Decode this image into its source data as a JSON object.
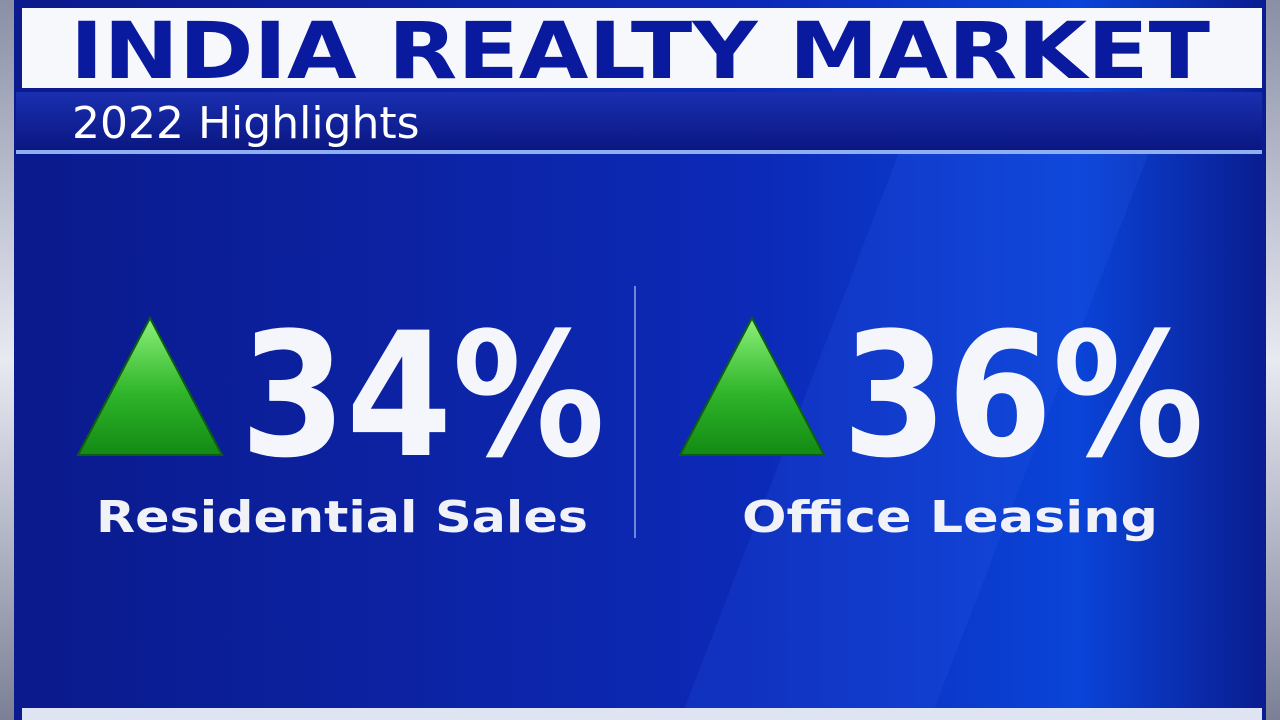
{
  "header": {
    "title": "INDIA REALTY MARKET",
    "subtitle": "2022 Highlights"
  },
  "highlights": [
    {
      "value": "34%",
      "label": "Residential Sales"
    },
    {
      "value": "36%",
      "label": "Office Leasing"
    }
  ]
}
